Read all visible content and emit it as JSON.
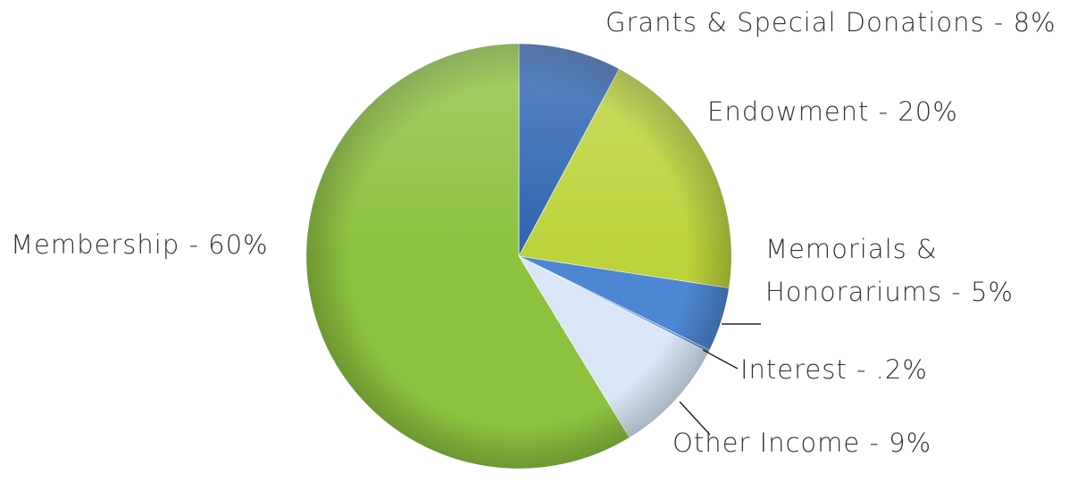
{
  "chart_data": {
    "type": "pie",
    "title": "",
    "start_angle_deg": 0,
    "direction": "clockwise",
    "slices": [
      {
        "label": "Grants & Special Donations - 8%",
        "value": 8,
        "color": "#2e64b0"
      },
      {
        "label": "Endowment - 20%",
        "value": 20,
        "color": "#bcd23a"
      },
      {
        "label": "Memorials & Honorariums - 5%",
        "value": 5,
        "color": "#4d86d2"
      },
      {
        "label": "Interest - .2%",
        "value": 0.2,
        "color": "#5d8fd6"
      },
      {
        "label": "Other Income - 9%",
        "value": 9,
        "color": "#d9e6f7"
      },
      {
        "label": "Membership - 60%",
        "value": 60,
        "color": "#8cc23e"
      }
    ]
  }
}
